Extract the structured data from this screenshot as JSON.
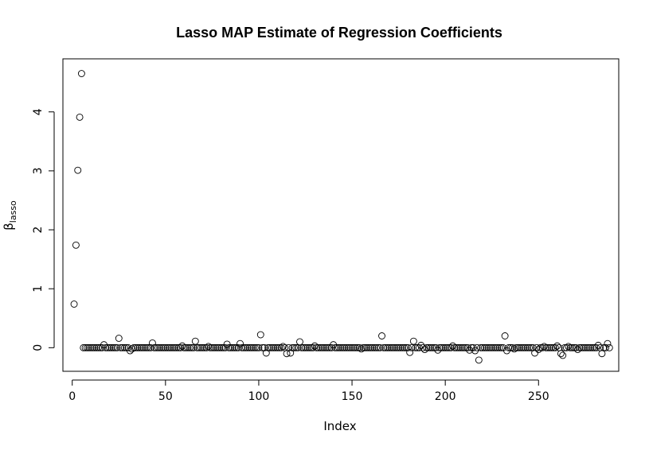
{
  "chart_data": {
    "type": "scatter",
    "title": "Lasso MAP Estimate of Regression Coefficients",
    "xlabel": "Index",
    "ylabel": "β",
    "ylabel_subscript": "lasso",
    "xlim": [
      -5,
      293
    ],
    "ylim": [
      -0.4,
      4.9
    ],
    "xticks": [
      0,
      50,
      100,
      150,
      200,
      250
    ],
    "xtick_labels": [
      "0",
      "50",
      "100",
      "150",
      "200",
      "250"
    ],
    "yticks": [
      0,
      1,
      2,
      3,
      4
    ],
    "ytick_labels": [
      "0",
      "1",
      "2",
      "3",
      "4"
    ],
    "grid": false,
    "point_style": "open-circle",
    "n_points": 288,
    "y_baseline": 0,
    "y_nonzero": {
      "1": 0.74,
      "2": 1.74,
      "3": 3.01,
      "4": 3.91,
      "5": 4.65,
      "17": 0.05,
      "25": 0.16,
      "31": -0.05,
      "32": -0.02,
      "43": 0.08,
      "59": 0.03,
      "66": 0.11,
      "73": 0.02,
      "83": 0.06,
      "90": 0.07,
      "101": 0.22,
      "104": -0.09,
      "113": 0.02,
      "115": -0.1,
      "117": -0.09,
      "122": 0.1,
      "130": 0.03,
      "140": 0.05,
      "155": -0.02,
      "166": 0.2,
      "181": -0.08,
      "183": 0.11,
      "187": 0.04,
      "189": -0.03,
      "196": -0.04,
      "204": 0.03,
      "213": -0.04,
      "216": -0.05,
      "218": -0.21,
      "232": 0.2,
      "233": -0.05,
      "237": -0.02,
      "248": -0.09,
      "250": -0.03,
      "253": 0.02,
      "260": 0.03,
      "262": -0.1,
      "263": -0.13,
      "266": 0.02,
      "271": -0.03,
      "282": 0.04,
      "284": -0.1,
      "287": 0.07
    }
  }
}
